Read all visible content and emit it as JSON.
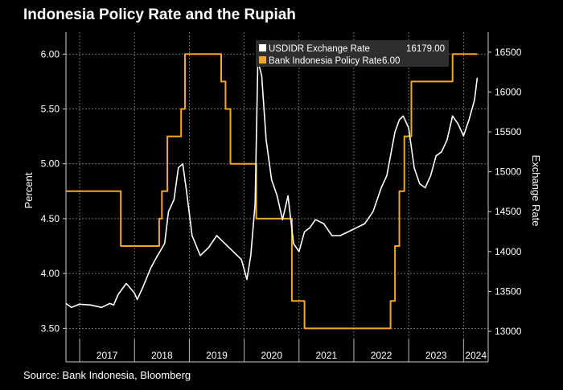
{
  "title": "Indonesia Policy Rate and the Rupiah",
  "source": "Source: Bank Indonesia, Bloomberg",
  "colors": {
    "background": "#000000",
    "usdidr": "#ffffff",
    "policy_rate": "#f5a623",
    "grid": "#8a8a8a"
  },
  "chart_data": {
    "type": "line",
    "title": "Indonesia Policy Rate and the Rupiah",
    "x_axis": {
      "ticks": [
        "2017",
        "2018",
        "2019",
        "2020",
        "2021",
        "2022",
        "2023",
        "2024"
      ],
      "range": [
        2016.75,
        2024.45
      ]
    },
    "y_left": {
      "label": "Percent",
      "ticks": [
        "3.50",
        "4.00",
        "4.50",
        "5.00",
        "5.50",
        "6.00"
      ],
      "range": [
        3.4,
        6.2
      ]
    },
    "y_right": {
      "label": "Exchange Rate",
      "ticks": [
        "13000",
        "13500",
        "14000",
        "14500",
        "15000",
        "15500",
        "16000",
        "16500"
      ],
      "range": [
        12900,
        16750
      ]
    },
    "grid": true,
    "legend": {
      "placement": "top-center",
      "items": [
        {
          "label": "USDIDR Exchange Rate",
          "value": "16179.00",
          "color": "#ffffff"
        },
        {
          "label": "Bank Indonesia Policy Rate",
          "value": "6.00",
          "color": "#f5a623"
        }
      ]
    },
    "series": [
      {
        "name": "Bank Indonesia Policy Rate",
        "axis": "left",
        "step": true,
        "x": [
          2016.75,
          2017.6,
          2017.75,
          2018.4,
          2018.45,
          2018.5,
          2018.6,
          2018.85,
          2018.92,
          2019.5,
          2019.58,
          2019.66,
          2019.75,
          2020.13,
          2020.22,
          2020.46,
          2020.87,
          2021.1,
          2022.6,
          2022.67,
          2022.75,
          2022.83,
          2022.92,
          2023.05,
          2023.8,
          2024.25
        ],
        "values": [
          4.75,
          4.75,
          4.25,
          4.25,
          4.5,
          4.75,
          5.25,
          5.5,
          6.0,
          6.0,
          5.75,
          5.5,
          5.0,
          5.0,
          4.5,
          4.5,
          3.75,
          3.5,
          3.5,
          3.75,
          4.25,
          4.75,
          5.25,
          5.75,
          6.0,
          6.0
        ]
      },
      {
        "name": "USDIDR Exchange Rate",
        "axis": "right",
        "x": [
          2016.75,
          2016.85,
          2017.0,
          2017.2,
          2017.4,
          2017.55,
          2017.62,
          2017.7,
          2017.85,
          2018.0,
          2018.05,
          2018.15,
          2018.3,
          2018.42,
          2018.55,
          2018.62,
          2018.72,
          2018.8,
          2018.88,
          2018.95,
          2019.05,
          2019.2,
          2019.35,
          2019.5,
          2019.65,
          2019.8,
          2019.95,
          2020.05,
          2020.12,
          2020.2,
          2020.25,
          2020.32,
          2020.4,
          2020.5,
          2020.6,
          2020.7,
          2020.8,
          2020.9,
          2021.0,
          2021.1,
          2021.2,
          2021.3,
          2021.45,
          2021.6,
          2021.75,
          2021.9,
          2022.05,
          2022.2,
          2022.35,
          2022.5,
          2022.6,
          2022.75,
          2022.83,
          2022.9,
          2023.0,
          2023.1,
          2023.2,
          2023.3,
          2023.4,
          2023.5,
          2023.6,
          2023.7,
          2023.8,
          2023.9,
          2024.0,
          2024.1,
          2024.2,
          2024.25
        ],
        "values": [
          13350,
          13300,
          13340,
          13330,
          13300,
          13350,
          13330,
          13460,
          13600,
          13480,
          13400,
          13550,
          13800,
          13950,
          14100,
          14500,
          14650,
          15050,
          15100,
          14750,
          14200,
          13950,
          14050,
          14200,
          14100,
          14000,
          13900,
          13650,
          13950,
          14600,
          16400,
          16200,
          15400,
          14900,
          14700,
          14400,
          14700,
          14100,
          14000,
          14250,
          14300,
          14400,
          14350,
          14200,
          14200,
          14250,
          14300,
          14350,
          14500,
          14800,
          14950,
          15500,
          15650,
          15700,
          15550,
          15050,
          14850,
          14800,
          14950,
          15200,
          15250,
          15400,
          15700,
          15600,
          15450,
          15650,
          15900,
          16179
        ]
      }
    ]
  }
}
